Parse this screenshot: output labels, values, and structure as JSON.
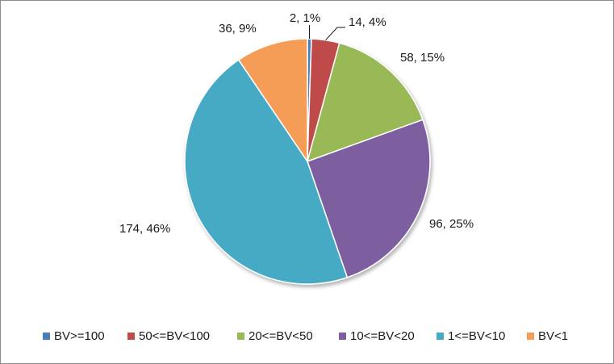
{
  "chart_data": {
    "type": "pie",
    "title": "",
    "categories": [
      "BV>=100",
      "50<=BV<100",
      "20<=BV<50",
      "10<=BV<20",
      "1<=BV<10",
      "BV<1"
    ],
    "values": [
      2,
      14,
      58,
      96,
      174,
      36
    ],
    "percent_labels": [
      "1%",
      "4%",
      "15%",
      "25%",
      "46%",
      "9%"
    ],
    "data_labels": [
      "2, 1%",
      "14, 4%",
      "58, 15%",
      "96, 25%",
      "174, 46%",
      "36, 9%"
    ],
    "colors": [
      "#4a7ebb",
      "#be4b48",
      "#98b954",
      "#7d5fa0",
      "#46aac4",
      "#f59d56"
    ],
    "legend": {
      "position": "bottom",
      "entries": [
        "BV>=100",
        "50<=BV<100",
        "20<=BV<50",
        "10<=BV<20",
        "1<=BV<10",
        "BV<1"
      ]
    },
    "start_angle_deg": 0,
    "direction": "clockwise"
  }
}
